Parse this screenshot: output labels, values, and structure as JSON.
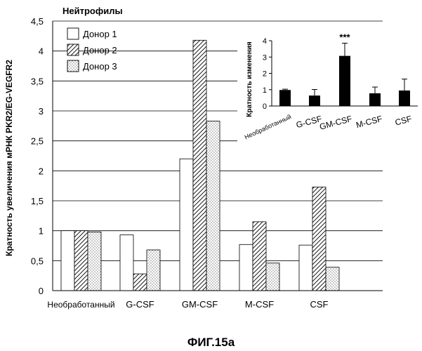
{
  "figure_caption": "ФИГ.15а",
  "chart_data": [
    {
      "type": "bar",
      "title": "Нейтрофилы",
      "ylabel": "Кратность увеличения мРНК PKR2/EG-VEGFR2",
      "xlabel": "",
      "ylim": [
        0,
        4.5
      ],
      "yticks": [
        "0",
        "0,5",
        "1",
        "1,5",
        "2",
        "2,5",
        "3",
        "3,5",
        "4",
        "4,5"
      ],
      "categories": [
        "Необработанный",
        "G-CSF",
        "GM-CSF",
        "M-CSF",
        "CSF"
      ],
      "grid": true,
      "legend_position": "top-left",
      "series": [
        {
          "name": "Донор 1",
          "pattern": "empty",
          "values": [
            1.0,
            0.93,
            2.2,
            0.77,
            0.76
          ]
        },
        {
          "name": "Донор 2",
          "pattern": "hatched",
          "values": [
            1.0,
            0.28,
            4.18,
            1.15,
            1.73
          ]
        },
        {
          "name": "Донор 3",
          "pattern": "dotted",
          "values": [
            0.98,
            0.68,
            2.83,
            0.46,
            0.39
          ]
        }
      ]
    },
    {
      "type": "bar",
      "title": "",
      "ylabel": "Кратность изменения",
      "xlabel": "",
      "ylim": [
        0,
        4
      ],
      "yticks": [
        "0",
        "1",
        "2",
        "3",
        "4"
      ],
      "categories": [
        "Необработанный",
        "G-CSF",
        "GM-CSF",
        "M-CSF",
        "CSF"
      ],
      "grid": false,
      "values": [
        0.98,
        0.64,
        3.07,
        0.78,
        0.95
      ],
      "errors": [
        0.05,
        0.37,
        0.78,
        0.38,
        0.7
      ],
      "annotations": [
        {
          "category": "GM-CSF",
          "text": "***"
        }
      ],
      "color": "#000000"
    }
  ]
}
